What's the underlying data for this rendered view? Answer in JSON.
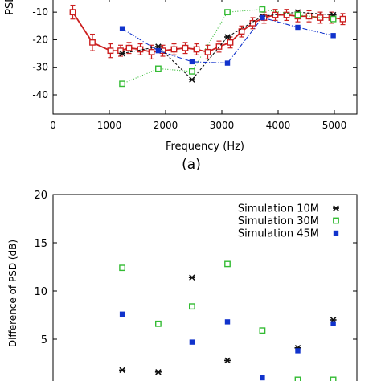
{
  "chart_data": [
    {
      "type": "line",
      "panel_label": "(a)",
      "xlabel": "Frequency (Hz)",
      "ylabel": "PSD (dB)",
      "xlim": [
        0,
        5400
      ],
      "ylim": [
        -47,
        -5
      ],
      "xticks": [
        0,
        1000,
        2000,
        3000,
        4000,
        5000
      ],
      "yticks": [
        -10,
        -20,
        -30,
        -40
      ],
      "grid": false,
      "series": [
        {
          "style": "measured",
          "color": "#cc2020",
          "marker": "open-square",
          "x": [
            350,
            700,
            1020,
            1200,
            1350,
            1550,
            1750,
            1950,
            2150,
            2350,
            2550,
            2750,
            2950,
            3150,
            3350,
            3550,
            3750,
            3950,
            4150,
            4350,
            4550,
            4750,
            4950,
            5150
          ],
          "y": [
            -10,
            -21,
            -24,
            -24,
            -23,
            -23.5,
            -24.5,
            -24,
            -23.5,
            -23,
            -23.5,
            -24.5,
            -22.5,
            -21,
            -17,
            -14,
            -12,
            -11,
            -11,
            -11.5,
            -11.5,
            -12,
            -12,
            -12.5
          ],
          "err": [
            2.5,
            3,
            2.5,
            2,
            2,
            2,
            2.5,
            2,
            2,
            2,
            2,
            2.5,
            2,
            2,
            2,
            2,
            2,
            2,
            2,
            2,
            2,
            2,
            2,
            2
          ]
        },
        {
          "style": "simulation-10m",
          "color": "#111111",
          "marker": "star",
          "x": [
            1230,
            1870,
            2470,
            3100,
            3720,
            4350,
            4980
          ],
          "y": [
            -25,
            -22.5,
            -34.5,
            -19,
            -11.5,
            -10,
            -11
          ]
        },
        {
          "style": "simulation-30m",
          "color": "#33bb33",
          "marker": "open-square",
          "x": [
            1230,
            1870,
            2470,
            3100,
            3720,
            4350,
            4980
          ],
          "y": [
            -36,
            -30.5,
            -31.5,
            -10,
            -9,
            -11,
            -12.5
          ]
        },
        {
          "style": "simulation-45m",
          "color": "#1133cc",
          "marker": "filled-square",
          "x": [
            1230,
            1870,
            2470,
            3100,
            3720,
            4350,
            4980
          ],
          "y": [
            -16,
            -24,
            -28,
            -28.5,
            -12,
            -15.5,
            -18.5
          ]
        }
      ]
    },
    {
      "type": "scatter",
      "ylabel": "Difference of PSD (dB)",
      "xlim": [
        0,
        5400
      ],
      "ylim": [
        0,
        20
      ],
      "yticks": [
        20,
        15,
        10,
        5
      ],
      "grid": false,
      "legend_position": "top-right",
      "series": [
        {
          "name": "Simulation 10M",
          "color": "#111111",
          "marker": "star",
          "x": [
            1230,
            1870,
            2470,
            3100,
            4350,
            4980
          ],
          "y": [
            1.8,
            1.6,
            11.4,
            2.8,
            4.1,
            7.0
          ]
        },
        {
          "name": "Simulation 30M",
          "color": "#33bb33",
          "marker": "open-square",
          "x": [
            1230,
            1870,
            2470,
            3100,
            3720,
            4350,
            4980
          ],
          "y": [
            12.4,
            6.6,
            8.4,
            12.8,
            5.9,
            0.8,
            0.8
          ]
        },
        {
          "name": "Simulation 45M",
          "color": "#1133cc",
          "marker": "filled-square",
          "x": [
            1230,
            2470,
            3100,
            3720,
            4350,
            4980
          ],
          "y": [
            7.6,
            4.7,
            6.8,
            1.0,
            3.8,
            6.6
          ]
        }
      ]
    }
  ]
}
